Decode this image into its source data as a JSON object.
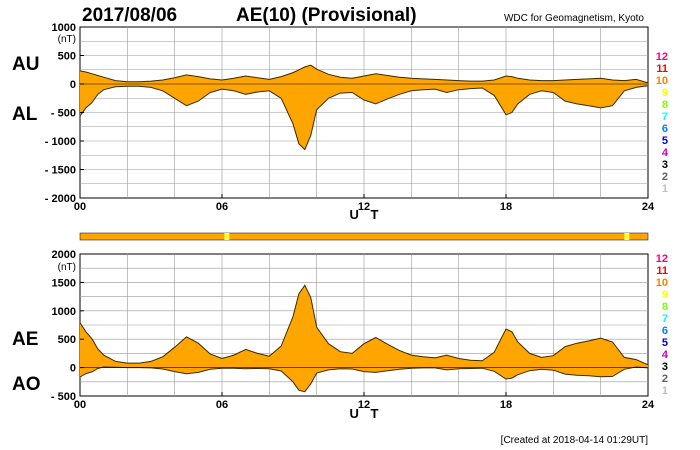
{
  "header": {
    "date": "2017/08/06",
    "title": "AE(10) (Provisional)",
    "credit": "WDC for Geomagnetism, Kyoto"
  },
  "footer": {
    "created": "[Created at 2018-04-14 01:29UT]"
  },
  "colors": {
    "fill": "#ffa500",
    "line": "#3a2a00",
    "grid": "#999999",
    "bar": "#ffa500",
    "bar_highlight": "#ffff33"
  },
  "legend": {
    "items": [
      {
        "label": "12",
        "color": "#ff0080"
      },
      {
        "label": "11",
        "color": "#ff0000"
      },
      {
        "label": "10",
        "color": "#ff8000"
      },
      {
        "label": "9",
        "color": "#ffff00"
      },
      {
        "label": "8",
        "color": "#80ff00"
      },
      {
        "label": "7",
        "color": "#00ffff"
      },
      {
        "label": "6",
        "color": "#0080ff"
      },
      {
        "label": "5",
        "color": "#0000cc"
      },
      {
        "label": "4",
        "color": "#cc00cc"
      },
      {
        "label": "3",
        "color": "#000000"
      },
      {
        "label": "2",
        "color": "#606060"
      },
      {
        "label": "1",
        "color": "#c0c0c0"
      }
    ]
  },
  "status_bar": {
    "highlights": [
      6.1,
      23.0
    ]
  },
  "chart_data": [
    {
      "type": "area",
      "name": "AU-AL",
      "series": [
        {
          "name": "AU"
        },
        {
          "name": "AL"
        }
      ],
      "ylabel_upper": "AU",
      "ylabel_lower": "AL",
      "unit": "(nT)",
      "xlabel": "U T",
      "xlim": [
        0,
        24
      ],
      "ylim": [
        -2000,
        1000
      ],
      "xticks": [
        "00",
        "06",
        "12",
        "18",
        "24"
      ],
      "xtick_values": [
        0,
        6,
        12,
        18,
        24
      ],
      "yticks": [
        "1000",
        "500",
        "0",
        "- 500",
        "- 1000",
        "- 1500",
        "- 2000"
      ],
      "ytick_values": [
        1000,
        500,
        0,
        -500,
        -1000,
        -1500,
        -2000
      ],
      "x": [
        0,
        0.25,
        0.5,
        0.75,
        1,
        1.5,
        2,
        2.5,
        3,
        3.5,
        4,
        4.5,
        5,
        5.5,
        6,
        6.5,
        7,
        7.5,
        8,
        8.5,
        9,
        9.25,
        9.5,
        9.75,
        10,
        10.5,
        11,
        11.5,
        12,
        12.5,
        13,
        13.5,
        14,
        14.5,
        15,
        15.5,
        16,
        16.5,
        17,
        17.5,
        18,
        18.25,
        18.5,
        19,
        19.5,
        20,
        20.5,
        21,
        21.5,
        22,
        22.5,
        23,
        23.5,
        24
      ],
      "au": [
        230,
        210,
        180,
        150,
        120,
        60,
        40,
        40,
        50,
        70,
        110,
        160,
        130,
        90,
        70,
        100,
        140,
        110,
        80,
        130,
        200,
        250,
        300,
        330,
        260,
        170,
        120,
        100,
        140,
        180,
        150,
        120,
        100,
        90,
        80,
        70,
        60,
        50,
        50,
        70,
        140,
        130,
        100,
        70,
        60,
        60,
        70,
        80,
        90,
        100,
        70,
        60,
        80,
        20
      ],
      "al": [
        -560,
        -420,
        -330,
        -180,
        -100,
        -50,
        -40,
        -40,
        -60,
        -120,
        -250,
        -380,
        -300,
        -150,
        -90,
        -120,
        -180,
        -140,
        -120,
        -250,
        -700,
        -1050,
        -1150,
        -900,
        -450,
        -250,
        -160,
        -150,
        -280,
        -350,
        -260,
        -180,
        -120,
        -100,
        -90,
        -150,
        -100,
        -80,
        -70,
        -200,
        -540,
        -500,
        -350,
        -180,
        -120,
        -150,
        -300,
        -350,
        -380,
        -420,
        -380,
        -120,
        -60,
        -30
      ]
    },
    {
      "type": "area",
      "name": "AE-AO",
      "series": [
        {
          "name": "AE"
        },
        {
          "name": "AO"
        }
      ],
      "ylabel_upper": "AE",
      "ylabel_lower": "AO",
      "unit": "(nT)",
      "xlabel": "U T",
      "xlim": [
        0,
        24
      ],
      "ylim": [
        -500,
        2000
      ],
      "xticks": [
        "00",
        "06",
        "12",
        "18",
        "24"
      ],
      "xtick_values": [
        0,
        6,
        12,
        18,
        24
      ],
      "yticks": [
        "2000",
        "1500",
        "1000",
        "500",
        "0",
        "- 500"
      ],
      "ytick_values": [
        2000,
        1500,
        1000,
        500,
        0,
        -500
      ],
      "x": [
        0,
        0.25,
        0.5,
        0.75,
        1,
        1.5,
        2,
        2.5,
        3,
        3.5,
        4,
        4.5,
        5,
        5.5,
        6,
        6.5,
        7,
        7.5,
        8,
        8.5,
        9,
        9.25,
        9.5,
        9.75,
        10,
        10.5,
        11,
        11.5,
        12,
        12.5,
        13,
        13.5,
        14,
        14.5,
        15,
        15.5,
        16,
        16.5,
        17,
        17.5,
        18,
        18.25,
        18.5,
        19,
        19.5,
        20,
        20.5,
        21,
        21.5,
        22,
        22.5,
        23,
        23.5,
        24
      ],
      "ae": [
        790,
        630,
        510,
        330,
        220,
        110,
        80,
        80,
        110,
        190,
        360,
        540,
        430,
        240,
        160,
        220,
        320,
        250,
        200,
        380,
        900,
        1300,
        1450,
        1230,
        710,
        420,
        280,
        250,
        420,
        530,
        410,
        300,
        220,
        190,
        170,
        220,
        160,
        130,
        120,
        270,
        680,
        630,
        450,
        250,
        180,
        210,
        370,
        430,
        470,
        520,
        450,
        180,
        140,
        50
      ],
      "ao": [
        -165,
        -105,
        -75,
        -15,
        10,
        5,
        0,
        0,
        -5,
        -25,
        -70,
        -110,
        -85,
        -30,
        -10,
        -10,
        -20,
        -15,
        -20,
        -60,
        -250,
        -400,
        -425,
        -285,
        -95,
        -40,
        -20,
        -25,
        -70,
        -85,
        -55,
        -30,
        -10,
        -5,
        -5,
        -40,
        -20,
        -15,
        -10,
        -65,
        -200,
        -185,
        -125,
        -55,
        -30,
        -45,
        -115,
        -135,
        -145,
        -160,
        -155,
        -30,
        10,
        -5
      ]
    }
  ]
}
